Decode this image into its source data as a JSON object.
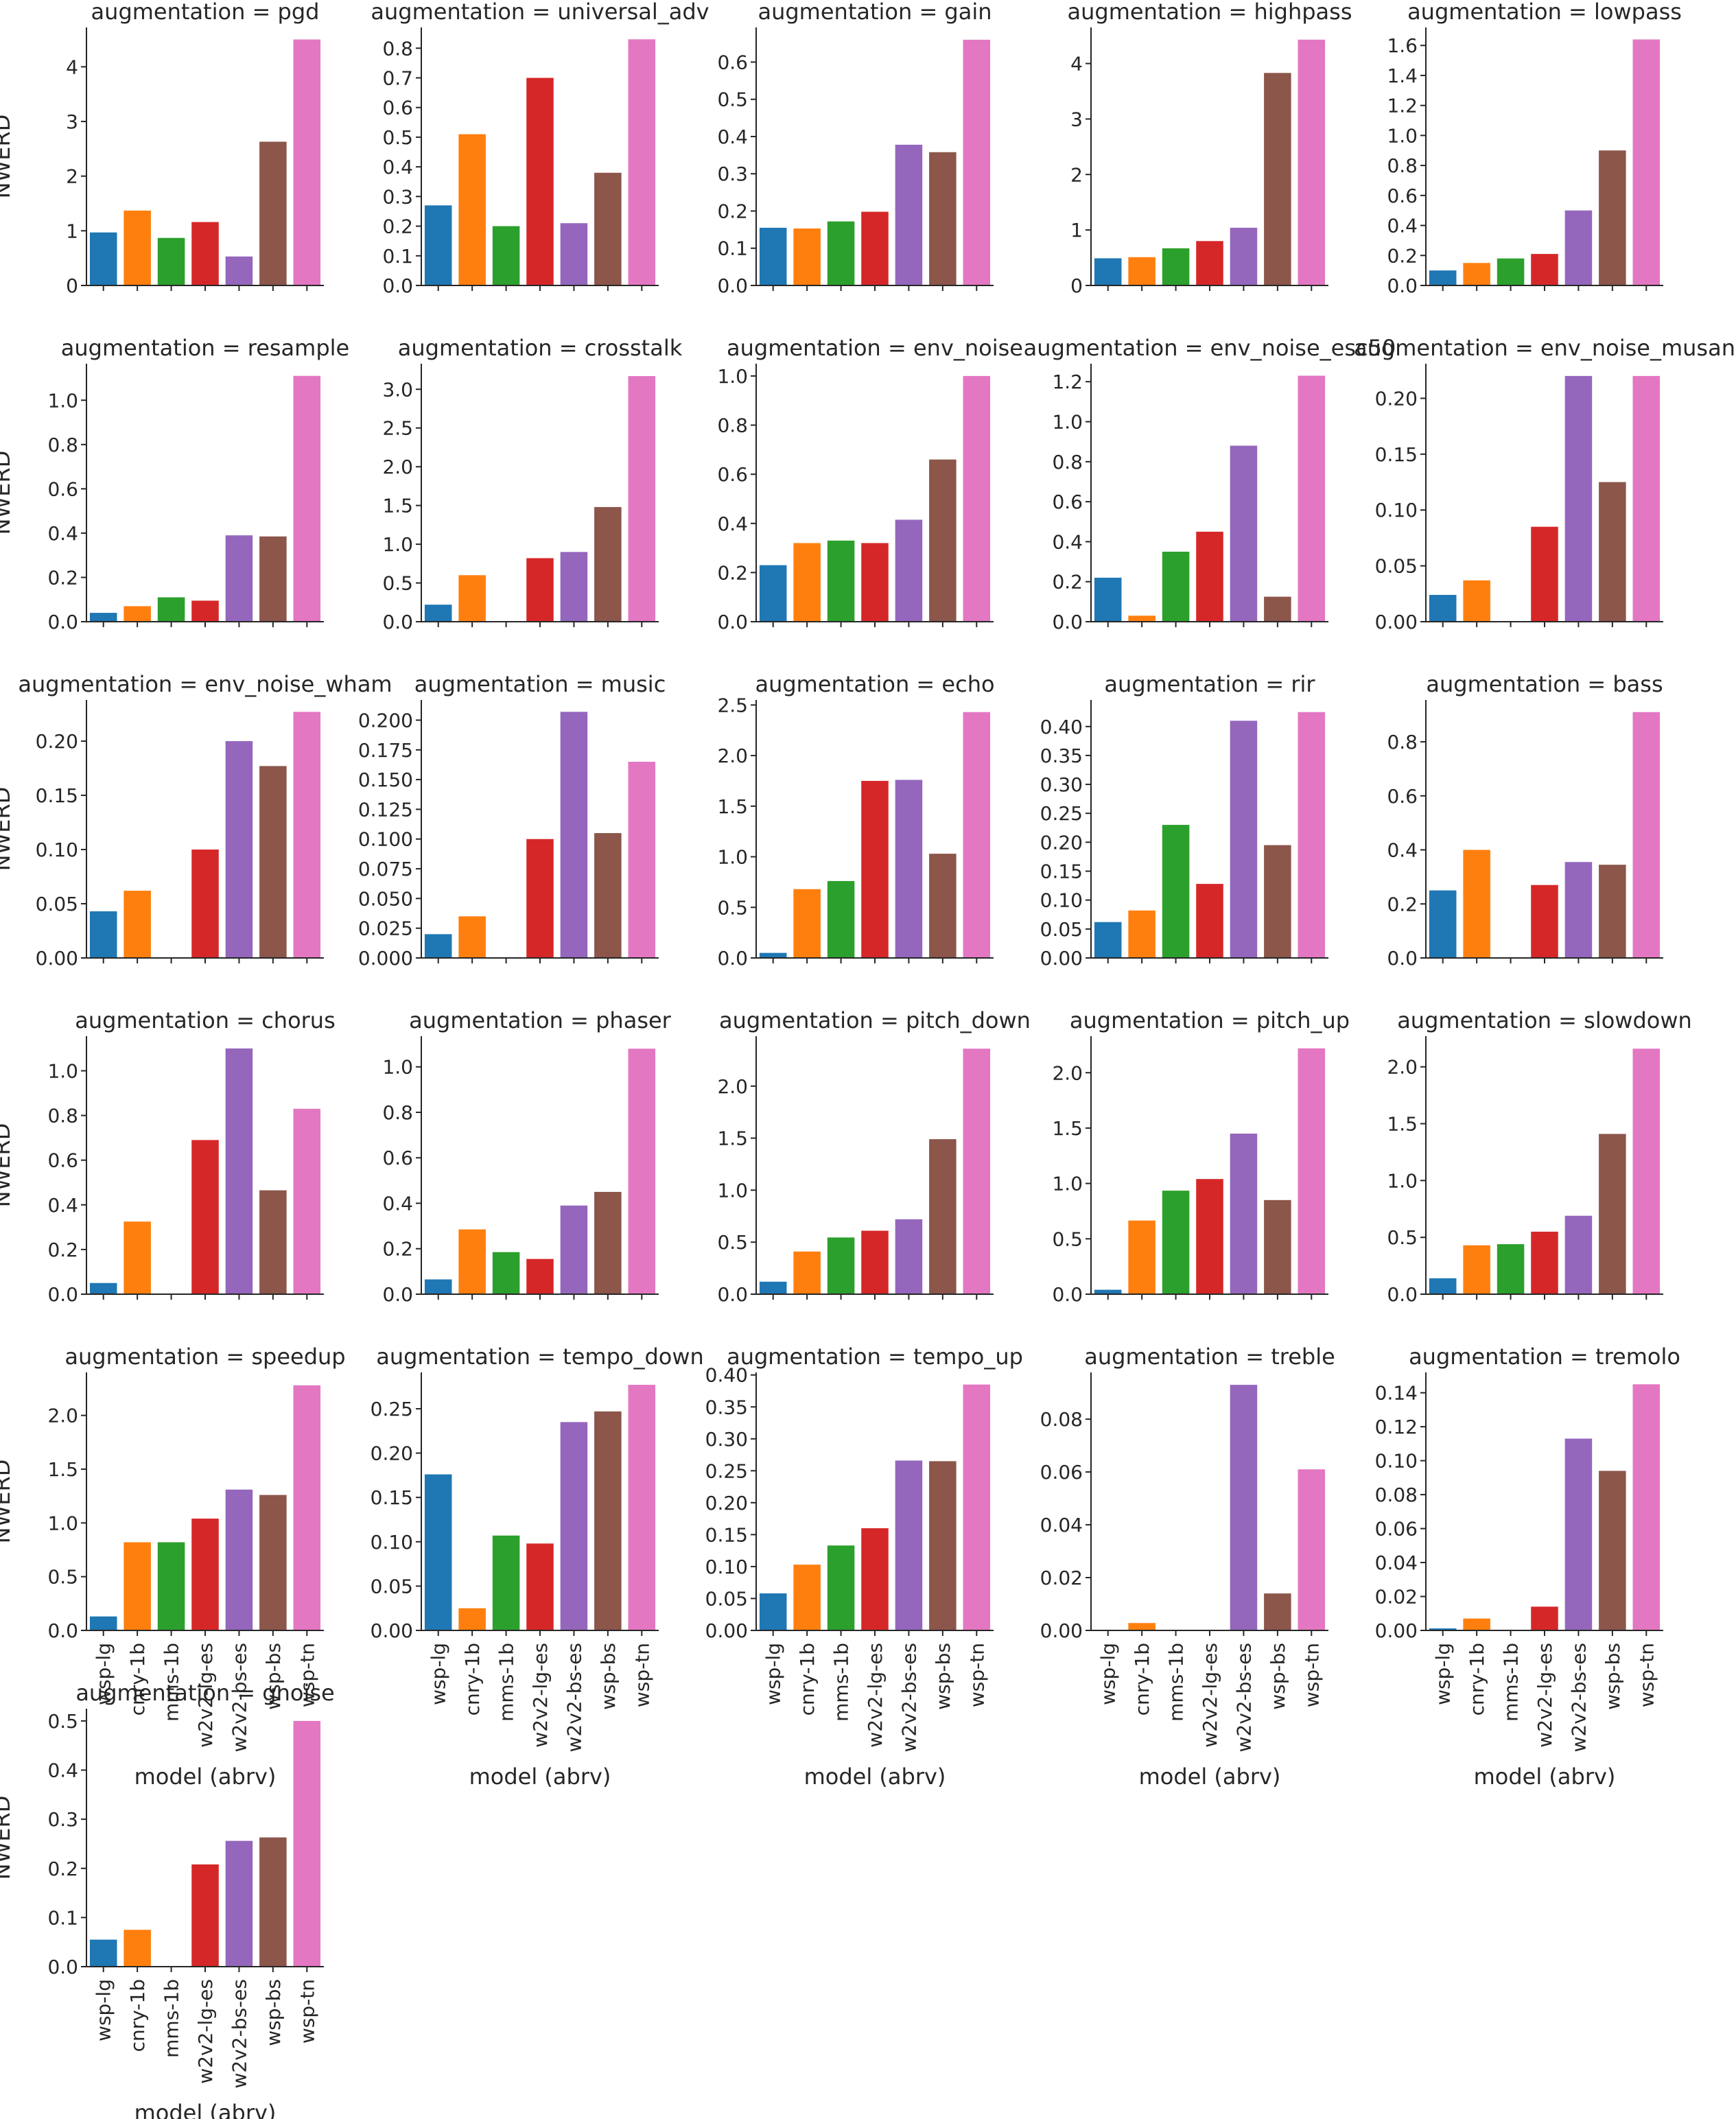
{
  "figure": {
    "y_label": "NWERD",
    "x_label": "model (abrv)"
  },
  "models": [
    "wsp-lg",
    "cnry-1b",
    "mms-1b",
    "w2v2-lg-es",
    "w2v2-bs-es",
    "wsp-bs",
    "wsp-tn"
  ],
  "colors": [
    "#1f77b4",
    "#ff7f0e",
    "#2ca02c",
    "#d62728",
    "#9467bd",
    "#8c564b",
    "#e377c2"
  ],
  "chart_data": [
    {
      "type": "bar",
      "title": "augmentation = pgd",
      "categories": [
        "wsp-lg",
        "cnry-1b",
        "mms-1b",
        "w2v2-lg-es",
        "w2v2-bs-es",
        "wsp-bs",
        "wsp-tn"
      ],
      "values": [
        0.97,
        1.37,
        0.87,
        1.16,
        0.53,
        2.63,
        4.5
      ],
      "ylim": [
        0,
        4.72
      ],
      "ticks": [
        "0",
        "1",
        "2",
        "3",
        "4"
      ]
    },
    {
      "type": "bar",
      "title": "augmentation = universal_adv",
      "categories": [
        "wsp-lg",
        "cnry-1b",
        "mms-1b",
        "w2v2-lg-es",
        "w2v2-bs-es",
        "wsp-bs",
        "wsp-tn"
      ],
      "values": [
        0.27,
        0.51,
        0.2,
        0.7,
        0.21,
        0.38,
        0.83
      ],
      "ylim": [
        0,
        0.87
      ],
      "ticks": [
        "0.0",
        "0.1",
        "0.2",
        "0.3",
        "0.4",
        "0.5",
        "0.6",
        "0.7",
        "0.8"
      ]
    },
    {
      "type": "bar",
      "title": "augmentation = gain",
      "categories": [
        "wsp-lg",
        "cnry-1b",
        "mms-1b",
        "w2v2-lg-es",
        "w2v2-bs-es",
        "wsp-bs",
        "wsp-tn"
      ],
      "values": [
        0.155,
        0.153,
        0.172,
        0.198,
        0.378,
        0.358,
        0.66
      ],
      "ylim": [
        0,
        0.693
      ],
      "ticks": [
        "0.0",
        "0.1",
        "0.2",
        "0.3",
        "0.4",
        "0.5",
        "0.6"
      ]
    },
    {
      "type": "bar",
      "title": "augmentation = highpass",
      "categories": [
        "wsp-lg",
        "cnry-1b",
        "mms-1b",
        "w2v2-lg-es",
        "w2v2-bs-es",
        "wsp-bs",
        "wsp-tn"
      ],
      "values": [
        0.49,
        0.51,
        0.67,
        0.8,
        1.04,
        3.83,
        4.43
      ],
      "ylim": [
        0,
        4.65
      ],
      "ticks": [
        "0",
        "1",
        "2",
        "3",
        "4"
      ]
    },
    {
      "type": "bar",
      "title": "augmentation = lowpass",
      "categories": [
        "wsp-lg",
        "cnry-1b",
        "mms-1b",
        "w2v2-lg-es",
        "w2v2-bs-es",
        "wsp-bs",
        "wsp-tn"
      ],
      "values": [
        0.1,
        0.15,
        0.18,
        0.21,
        0.5,
        0.9,
        1.64
      ],
      "ylim": [
        0,
        1.72
      ],
      "ticks": [
        "0.0",
        "0.2",
        "0.4",
        "0.6",
        "0.8",
        "1.0",
        "1.2",
        "1.4",
        "1.6"
      ]
    },
    {
      "type": "bar",
      "title": "augmentation = resample",
      "categories": [
        "wsp-lg",
        "cnry-1b",
        "mms-1b",
        "w2v2-lg-es",
        "w2v2-bs-es",
        "wsp-bs",
        "wsp-tn"
      ],
      "values": [
        0.04,
        0.07,
        0.11,
        0.095,
        0.39,
        0.385,
        1.11
      ],
      "ylim": [
        0,
        1.165
      ],
      "ticks": [
        "0.0",
        "0.2",
        "0.4",
        "0.6",
        "0.8",
        "1.0"
      ]
    },
    {
      "type": "bar",
      "title": "augmentation = crosstalk",
      "categories": [
        "wsp-lg",
        "cnry-1b",
        "mms-1b",
        "w2v2-lg-es",
        "w2v2-bs-es",
        "wsp-bs",
        "wsp-tn"
      ],
      "values": [
        0.22,
        0.6,
        0,
        0.82,
        0.9,
        1.48,
        3.17
      ],
      "ylim": [
        0,
        3.33
      ],
      "ticks": [
        "0.0",
        "0.5",
        "1.0",
        "1.5",
        "2.0",
        "2.5",
        "3.0"
      ]
    },
    {
      "type": "bar",
      "title": "augmentation = env_noise",
      "categories": [
        "wsp-lg",
        "cnry-1b",
        "mms-1b",
        "w2v2-lg-es",
        "w2v2-bs-es",
        "wsp-bs",
        "wsp-tn"
      ],
      "values": [
        0.23,
        0.32,
        0.33,
        0.32,
        0.415,
        0.66,
        1.0
      ],
      "ylim": [
        0,
        1.05
      ],
      "ticks": [
        "0.0",
        "0.2",
        "0.4",
        "0.6",
        "0.8",
        "1.0"
      ]
    },
    {
      "type": "bar",
      "title": "augmentation = env_noise_esc50",
      "categories": [
        "wsp-lg",
        "cnry-1b",
        "mms-1b",
        "w2v2-lg-es",
        "w2v2-bs-es",
        "wsp-bs",
        "wsp-tn"
      ],
      "values": [
        0.22,
        0.03,
        0.35,
        0.45,
        0.88,
        0.125,
        1.23
      ],
      "ylim": [
        0,
        1.29
      ],
      "ticks": [
        "0.0",
        "0.2",
        "0.4",
        "0.6",
        "0.8",
        "1.0",
        "1.2"
      ]
    },
    {
      "type": "bar",
      "title": "augmentation = env_noise_musan",
      "categories": [
        "wsp-lg",
        "cnry-1b",
        "mms-1b",
        "w2v2-lg-es",
        "w2v2-bs-es",
        "wsp-bs",
        "wsp-tn"
      ],
      "values": [
        0.024,
        0.037,
        0,
        0.085,
        0.22,
        0.125,
        0.22
      ],
      "ylim": [
        0,
        0.231
      ],
      "ticks": [
        "0.00",
        "0.05",
        "0.10",
        "0.15",
        "0.20"
      ]
    },
    {
      "type": "bar",
      "title": "augmentation = env_noise_wham",
      "categories": [
        "wsp-lg",
        "cnry-1b",
        "mms-1b",
        "w2v2-lg-es",
        "w2v2-bs-es",
        "wsp-bs",
        "wsp-tn"
      ],
      "values": [
        0.043,
        0.062,
        0,
        0.1,
        0.2,
        0.177,
        0.227
      ],
      "ylim": [
        0,
        0.238
      ],
      "ticks": [
        "0.00",
        "0.05",
        "0.10",
        "0.15",
        "0.20"
      ]
    },
    {
      "type": "bar",
      "title": "augmentation = music",
      "categories": [
        "wsp-lg",
        "cnry-1b",
        "mms-1b",
        "w2v2-lg-es",
        "w2v2-bs-es",
        "wsp-bs",
        "wsp-tn"
      ],
      "values": [
        0.02,
        0.035,
        0,
        0.1,
        0.207,
        0.105,
        0.165
      ],
      "ylim": [
        0,
        0.217
      ],
      "ticks": [
        "0.000",
        "0.025",
        "0.050",
        "0.075",
        "0.100",
        "0.125",
        "0.150",
        "0.175",
        "0.200"
      ]
    },
    {
      "type": "bar",
      "title": "augmentation = echo",
      "categories": [
        "wsp-lg",
        "cnry-1b",
        "mms-1b",
        "w2v2-lg-es",
        "w2v2-bs-es",
        "wsp-bs",
        "wsp-tn"
      ],
      "values": [
        0.05,
        0.68,
        0.76,
        1.75,
        1.76,
        1.03,
        2.43
      ],
      "ylim": [
        0,
        2.55
      ],
      "ticks": [
        "0.0",
        "0.5",
        "1.0",
        "1.5",
        "2.0",
        "2.5"
      ]
    },
    {
      "type": "bar",
      "title": "augmentation = rir",
      "categories": [
        "wsp-lg",
        "cnry-1b",
        "mms-1b",
        "w2v2-lg-es",
        "w2v2-bs-es",
        "wsp-bs",
        "wsp-tn"
      ],
      "values": [
        0.062,
        0.082,
        0.23,
        0.128,
        0.41,
        0.195,
        0.425
      ],
      "ylim": [
        0,
        0.446
      ],
      "ticks": [
        "0.00",
        "0.05",
        "0.10",
        "0.15",
        "0.20",
        "0.25",
        "0.30",
        "0.35",
        "0.40"
      ]
    },
    {
      "type": "bar",
      "title": "augmentation = bass",
      "categories": [
        "wsp-lg",
        "cnry-1b",
        "mms-1b",
        "w2v2-lg-es",
        "w2v2-bs-es",
        "wsp-bs",
        "wsp-tn"
      ],
      "values": [
        0.25,
        0.4,
        0,
        0.27,
        0.355,
        0.345,
        0.91
      ],
      "ylim": [
        0,
        0.955
      ],
      "ticks": [
        "0.0",
        "0.2",
        "0.4",
        "0.6",
        "0.8"
      ]
    },
    {
      "type": "bar",
      "title": "augmentation = chorus",
      "categories": [
        "wsp-lg",
        "cnry-1b",
        "mms-1b",
        "w2v2-lg-es",
        "w2v2-bs-es",
        "wsp-bs",
        "wsp-tn"
      ],
      "values": [
        0.05,
        0.325,
        0,
        0.69,
        1.1,
        0.465,
        0.83
      ],
      "ylim": [
        0,
        1.155
      ],
      "ticks": [
        "0.0",
        "0.2",
        "0.4",
        "0.6",
        "0.8",
        "1.0"
      ]
    },
    {
      "type": "bar",
      "title": "augmentation = phaser",
      "categories": [
        "wsp-lg",
        "cnry-1b",
        "mms-1b",
        "w2v2-lg-es",
        "w2v2-bs-es",
        "wsp-bs",
        "wsp-tn"
      ],
      "values": [
        0.065,
        0.285,
        0.185,
        0.155,
        0.39,
        0.45,
        1.08
      ],
      "ylim": [
        0,
        1.135
      ],
      "ticks": [
        "0.0",
        "0.2",
        "0.4",
        "0.6",
        "0.8",
        "1.0"
      ]
    },
    {
      "type": "bar",
      "title": "augmentation = pitch_down",
      "categories": [
        "wsp-lg",
        "cnry-1b",
        "mms-1b",
        "w2v2-lg-es",
        "w2v2-bs-es",
        "wsp-bs",
        "wsp-tn"
      ],
      "values": [
        0.12,
        0.41,
        0.545,
        0.61,
        0.72,
        1.49,
        2.36
      ],
      "ylim": [
        0,
        2.48
      ],
      "ticks": [
        "0.0",
        "0.5",
        "1.0",
        "1.5",
        "2.0"
      ]
    },
    {
      "type": "bar",
      "title": "augmentation = pitch_up",
      "categories": [
        "wsp-lg",
        "cnry-1b",
        "mms-1b",
        "w2v2-lg-es",
        "w2v2-bs-es",
        "wsp-bs",
        "wsp-tn"
      ],
      "values": [
        0.04,
        0.665,
        0.935,
        1.04,
        1.45,
        0.85,
        2.22
      ],
      "ylim": [
        0,
        2.33
      ],
      "ticks": [
        "0.0",
        "0.5",
        "1.0",
        "1.5",
        "2.0"
      ]
    },
    {
      "type": "bar",
      "title": "augmentation = slowdown",
      "categories": [
        "wsp-lg",
        "cnry-1b",
        "mms-1b",
        "w2v2-lg-es",
        "w2v2-bs-es",
        "wsp-bs",
        "wsp-tn"
      ],
      "values": [
        0.14,
        0.43,
        0.44,
        0.55,
        0.69,
        1.41,
        2.16
      ],
      "ylim": [
        0,
        2.27
      ],
      "ticks": [
        "0.0",
        "0.5",
        "1.0",
        "1.5",
        "2.0"
      ]
    },
    {
      "type": "bar",
      "title": "augmentation = speedup",
      "categories": [
        "wsp-lg",
        "cnry-1b",
        "mms-1b",
        "w2v2-lg-es",
        "w2v2-bs-es",
        "wsp-bs",
        "wsp-tn"
      ],
      "values": [
        0.13,
        0.82,
        0.82,
        1.04,
        1.31,
        1.26,
        2.28
      ],
      "ylim": [
        0,
        2.4
      ],
      "ticks": [
        "0.0",
        "0.5",
        "1.0",
        "1.5",
        "2.0"
      ]
    },
    {
      "type": "bar",
      "title": "augmentation = tempo_down",
      "categories": [
        "wsp-lg",
        "cnry-1b",
        "mms-1b",
        "w2v2-lg-es",
        "w2v2-bs-es",
        "wsp-bs",
        "wsp-tn"
      ],
      "values": [
        0.176,
        0.025,
        0.107,
        0.098,
        0.235,
        0.247,
        0.277
      ],
      "ylim": [
        0,
        0.291
      ],
      "ticks": [
        "0.00",
        "0.05",
        "0.10",
        "0.15",
        "0.20",
        "0.25"
      ]
    },
    {
      "type": "bar",
      "title": "augmentation = tempo_up",
      "categories": [
        "wsp-lg",
        "cnry-1b",
        "mms-1b",
        "w2v2-lg-es",
        "w2v2-bs-es",
        "wsp-bs",
        "wsp-tn"
      ],
      "values": [
        0.058,
        0.103,
        0.133,
        0.16,
        0.266,
        0.265,
        0.385
      ],
      "ylim": [
        0,
        0.404
      ],
      "ticks": [
        "0.00",
        "0.05",
        "0.10",
        "0.15",
        "0.20",
        "0.25",
        "0.30",
        "0.35",
        "0.40"
      ]
    },
    {
      "type": "bar",
      "title": "augmentation = treble",
      "categories": [
        "wsp-lg",
        "cnry-1b",
        "mms-1b",
        "w2v2-lg-es",
        "w2v2-bs-es",
        "wsp-bs",
        "wsp-tn"
      ],
      "values": [
        0,
        0.0028,
        0,
        0,
        0.093,
        0.014,
        0.061
      ],
      "ylim": [
        0,
        0.0977
      ],
      "ticks": [
        "0.00",
        "0.02",
        "0.04",
        "0.06",
        "0.08"
      ]
    },
    {
      "type": "bar",
      "title": "augmentation = tremolo",
      "categories": [
        "wsp-lg",
        "cnry-1b",
        "mms-1b",
        "w2v2-lg-es",
        "w2v2-bs-es",
        "wsp-bs",
        "wsp-tn"
      ],
      "values": [
        0.0012,
        0.007,
        0,
        0.014,
        0.113,
        0.094,
        0.145
      ],
      "ylim": [
        0,
        0.152
      ],
      "ticks": [
        "0.00",
        "0.02",
        "0.04",
        "0.06",
        "0.08",
        "0.10",
        "0.12",
        "0.14"
      ]
    },
    {
      "type": "bar",
      "title": "augmentation = gnoise",
      "categories": [
        "wsp-lg",
        "cnry-1b",
        "mms-1b",
        "w2v2-lg-es",
        "w2v2-bs-es",
        "wsp-bs",
        "wsp-tn"
      ],
      "values": [
        0.055,
        0.075,
        0,
        0.208,
        0.256,
        0.263,
        0.5
      ],
      "ylim": [
        0,
        0.525
      ],
      "ticks": [
        "0.0",
        "0.1",
        "0.2",
        "0.3",
        "0.4",
        "0.5"
      ]
    }
  ]
}
